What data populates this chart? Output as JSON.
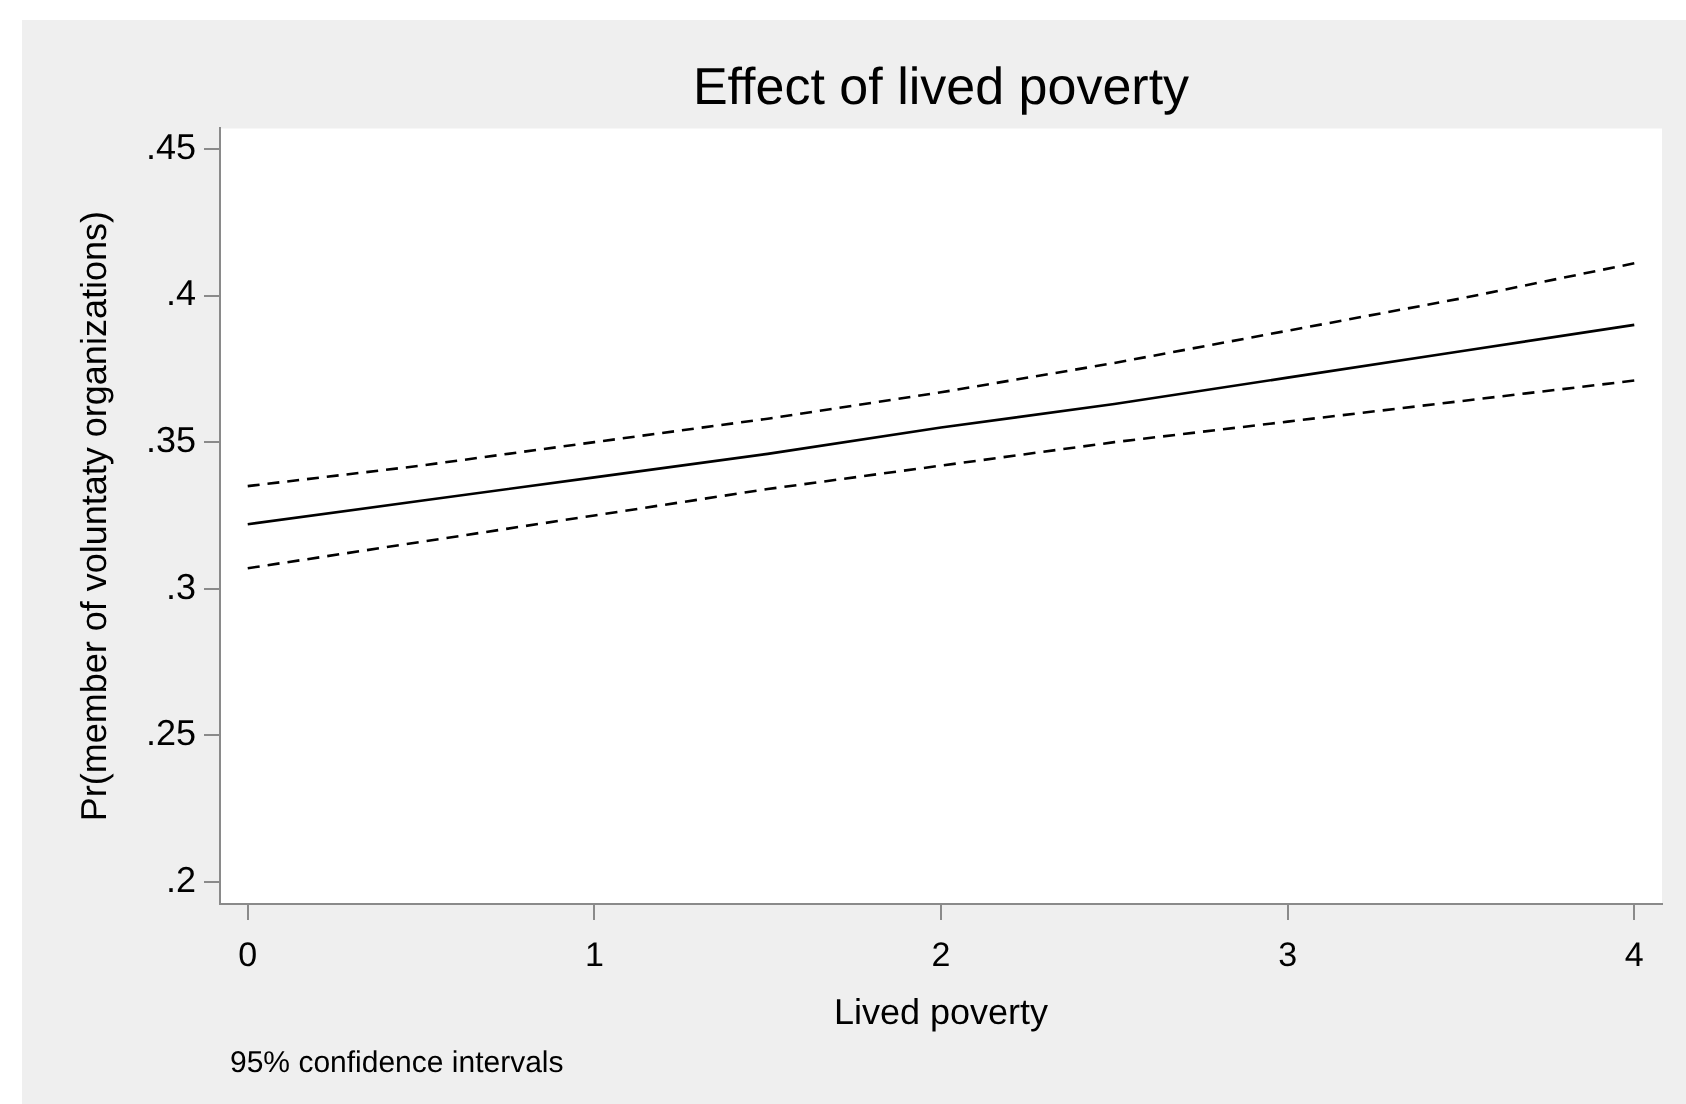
{
  "chart_data": {
    "type": "line",
    "title": "Effect of lived poverty",
    "xlabel": "Lived poverty",
    "ylabel": "Pr(member of voluntaty organizations)",
    "annotations": [
      "95% confidence intervals"
    ],
    "x": [
      0,
      0.5,
      1,
      1.5,
      2,
      2.5,
      3,
      3.5,
      4
    ],
    "series": [
      {
        "color": "#000000",
        "line_style": "solid",
        "values": [
          0.322,
          0.33,
          0.338,
          0.346,
          0.355,
          0.363,
          0.372,
          0.381,
          0.39
        ]
      },
      {
        "color": "#000000",
        "line_style": "dashed",
        "values": [
          0.335,
          0.342,
          0.35,
          0.358,
          0.367,
          0.377,
          0.388,
          0.399,
          0.411
        ]
      },
      {
        "color": "#000000",
        "line_style": "dashed",
        "values": [
          0.307,
          0.316,
          0.325,
          0.334,
          0.342,
          0.35,
          0.357,
          0.364,
          0.371
        ]
      }
    ],
    "xlim": [
      -0.08,
      4.08
    ],
    "ylim": [
      0.1925,
      0.457
    ],
    "xticks": [
      0,
      1,
      2,
      3,
      4
    ],
    "yticks": [
      {
        "value": 0.2,
        "label": ".2"
      },
      {
        "value": 0.25,
        "label": ".25"
      },
      {
        "value": 0.3,
        "label": ".3"
      },
      {
        "value": 0.35,
        "label": ".35"
      },
      {
        "value": 0.4,
        "label": ".4"
      },
      {
        "value": 0.45,
        "label": ".45"
      }
    ],
    "marker": "none"
  }
}
